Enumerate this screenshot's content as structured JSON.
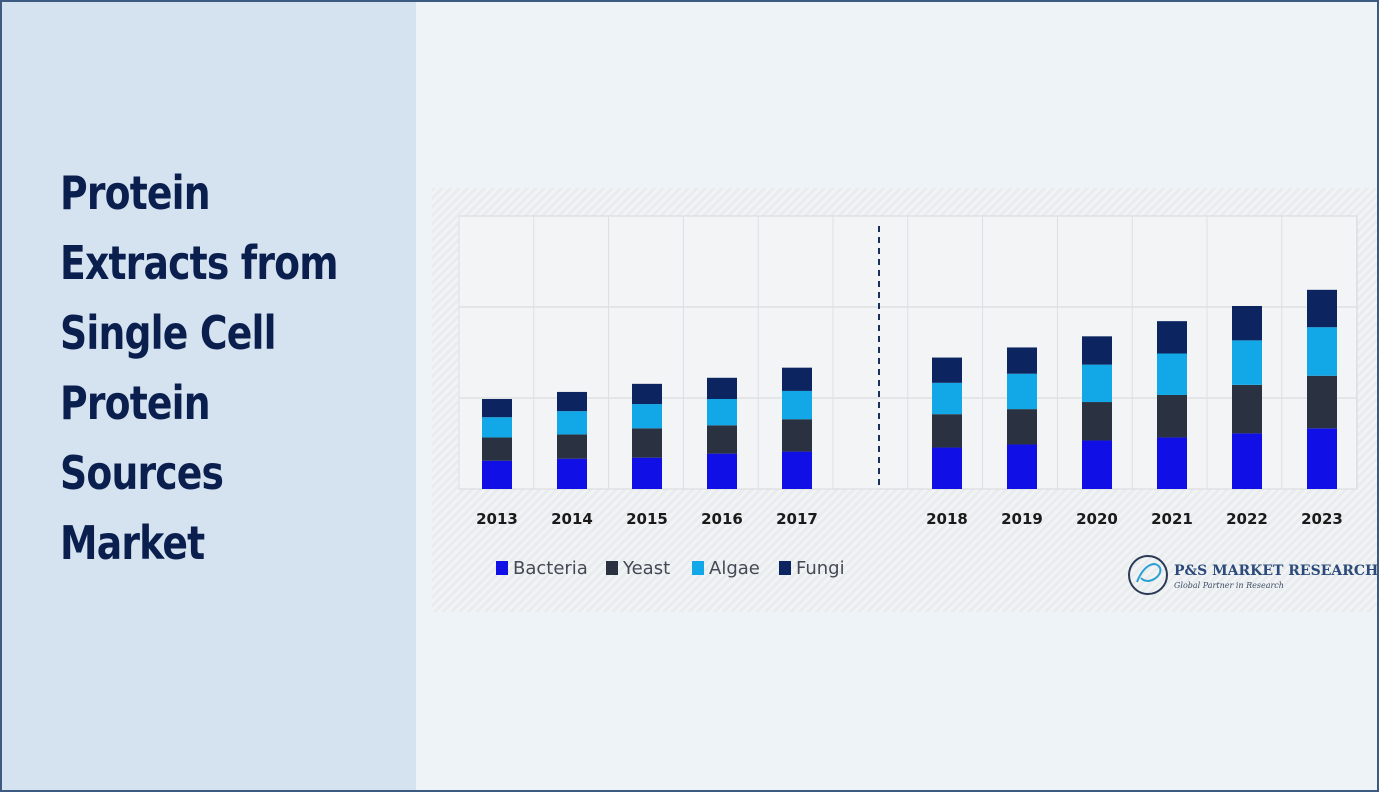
{
  "title": "Protein\nExtracts from\nSingle Cell\nProtein\nSources\nMarket",
  "colors": {
    "Bacteria": "#1010e6",
    "Yeast": "#2a3140",
    "Algae": "#12a8e8",
    "Fungi": "#0c2560"
  },
  "logo": {
    "name": "P&S MARKET RESEARCH",
    "tagline": "Global Partner in Research"
  },
  "chart_data": {
    "type": "bar",
    "stacked": true,
    "categories": [
      "2013",
      "2014",
      "2015",
      "2016",
      "2017",
      "2018",
      "2019",
      "2020",
      "2021",
      "2022",
      "2023"
    ],
    "series": [
      {
        "name": "Bacteria",
        "values": [
          28,
          30,
          31,
          35,
          37,
          41,
          44,
          48,
          51,
          55,
          60
        ]
      },
      {
        "name": "Yeast",
        "values": [
          23,
          24,
          29,
          28,
          32,
          33,
          35,
          38,
          42,
          48,
          52
        ]
      },
      {
        "name": "Algae",
        "values": [
          20,
          23,
          24,
          26,
          28,
          31,
          35,
          37,
          41,
          44,
          48
        ]
      },
      {
        "name": "Fungi",
        "values": [
          18,
          19,
          20,
          21,
          23,
          25,
          26,
          28,
          32,
          34,
          37
        ]
      }
    ],
    "ylim": [
      0,
      270
    ],
    "grid": true,
    "legend": "bottom-left",
    "divider_after": "2017"
  }
}
